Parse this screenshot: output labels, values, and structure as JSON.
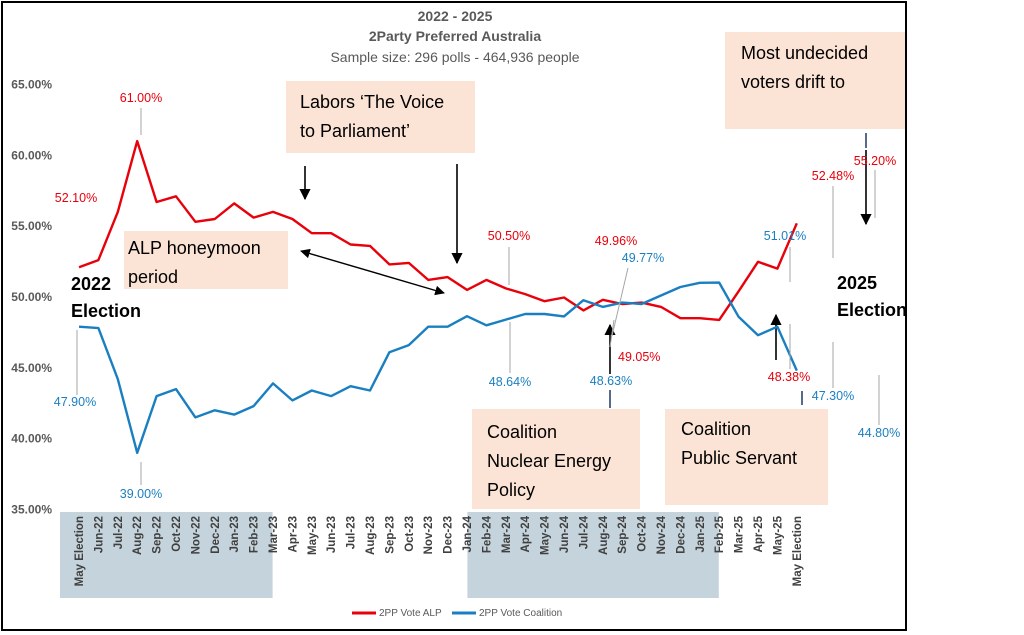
{
  "chart_data": {
    "type": "line",
    "title": "2022 - 2025",
    "subtitle": "2Party Preferred Australia",
    "subtitle2": "Sample size: 296 polls - 464,936 people",
    "ylim": [
      35,
      65
    ],
    "yticks": [
      "35.00%",
      "40.00%",
      "45.00%",
      "50.00%",
      "55.00%",
      "60.00%",
      "65.00%"
    ],
    "categories": [
      "May Election",
      "Jun-22",
      "Jul-22",
      "Aug-22",
      "Sep-22",
      "Oct-22",
      "Nov-22",
      "Dec-22",
      "Jan-23",
      "Feb-23",
      "Mar-23",
      "Apr-23",
      "May-23",
      "Jun-23",
      "Jul-23",
      "Aug-23",
      "Sep-23",
      "Oct-23",
      "Nov-23",
      "Dec-23",
      "Jan-24",
      "Feb-24",
      "Mar-24",
      "Apr-24",
      "May-24",
      "Jun-24",
      "Jul-24",
      "Aug-24",
      "Sep-24",
      "Oct-24",
      "Nov-24",
      "Dec-24",
      "Jan-25",
      "Feb-25",
      "Mar-25",
      "Apr-25",
      "May-25",
      "May Election"
    ],
    "series": [
      {
        "name": "2PP Vote ALP",
        "color": "#e8000b",
        "values": [
          52.1,
          52.6,
          56.0,
          61.0,
          56.7,
          57.1,
          55.3,
          55.5,
          56.6,
          55.6,
          56.0,
          55.5,
          54.5,
          54.5,
          53.7,
          53.6,
          52.3,
          52.4,
          51.2,
          51.4,
          50.5,
          51.2,
          50.6,
          50.2,
          49.7,
          49.96,
          49.05,
          49.8,
          49.5,
          49.6,
          49.3,
          48.5,
          48.5,
          48.38,
          50.4,
          52.48,
          52.0,
          55.2
        ]
      },
      {
        "name": "2PP Vote Coalition",
        "color": "#1a7fc1",
        "values": [
          47.9,
          47.8,
          44.2,
          39.0,
          43.0,
          43.5,
          41.5,
          42.0,
          41.7,
          42.3,
          43.9,
          42.7,
          43.4,
          43.0,
          43.7,
          43.4,
          46.1,
          46.6,
          47.9,
          47.9,
          48.64,
          48.0,
          48.4,
          48.8,
          48.8,
          48.63,
          49.77,
          49.3,
          49.6,
          49.5,
          50.1,
          50.7,
          51.0,
          51.01,
          48.6,
          47.3,
          47.9,
          44.8
        ]
      }
    ],
    "data_labels": [
      {
        "series": 0,
        "index": 0,
        "text": "52.10%"
      },
      {
        "series": 0,
        "index": 3,
        "text": "61.00%"
      },
      {
        "series": 0,
        "index": 20,
        "text": "50.50%"
      },
      {
        "series": 0,
        "index": 25,
        "text": "49.96%"
      },
      {
        "series": 0,
        "index": 26,
        "text": "49.05%"
      },
      {
        "series": 0,
        "index": 33,
        "text": "48.38%"
      },
      {
        "series": 0,
        "index": 35,
        "text": "52.48%"
      },
      {
        "series": 0,
        "index": 37,
        "text": "55.20%"
      },
      {
        "series": 1,
        "index": 0,
        "text": "47.90%"
      },
      {
        "series": 1,
        "index": 3,
        "text": "39.00%"
      },
      {
        "series": 1,
        "index": 20,
        "text": "48.64%"
      },
      {
        "series": 1,
        "index": 25,
        "text": "48.63%"
      },
      {
        "series": 1,
        "index": 26,
        "text": "49.77%"
      },
      {
        "series": 1,
        "index": 33,
        "text": "51.01%"
      },
      {
        "series": 1,
        "index": 35,
        "text": "47.30%"
      },
      {
        "series": 1,
        "index": 37,
        "text": "44.80%"
      }
    ],
    "shaded_x_ranges": [
      [
        0,
        9
      ],
      [
        21,
        32
      ]
    ],
    "annotations": [
      {
        "lines": [
          "Labors ‘The Voice",
          "to Parliament’"
        ]
      },
      {
        "lines": [
          "ALP honeymoon",
          "period"
        ]
      },
      {
        "lines": [
          "Coalition",
          "Nuclear Energy",
          "Policy"
        ]
      },
      {
        "lines": [
          "Coalition",
          "Public Servant"
        ]
      },
      {
        "lines": [
          "Most undecided",
          "voters drift to"
        ]
      }
    ],
    "election_labels": [
      {
        "lines": [
          "2022",
          "Election"
        ]
      },
      {
        "lines": [
          "2025",
          "Election"
        ]
      }
    ],
    "grid": false,
    "legend": "bottom"
  }
}
